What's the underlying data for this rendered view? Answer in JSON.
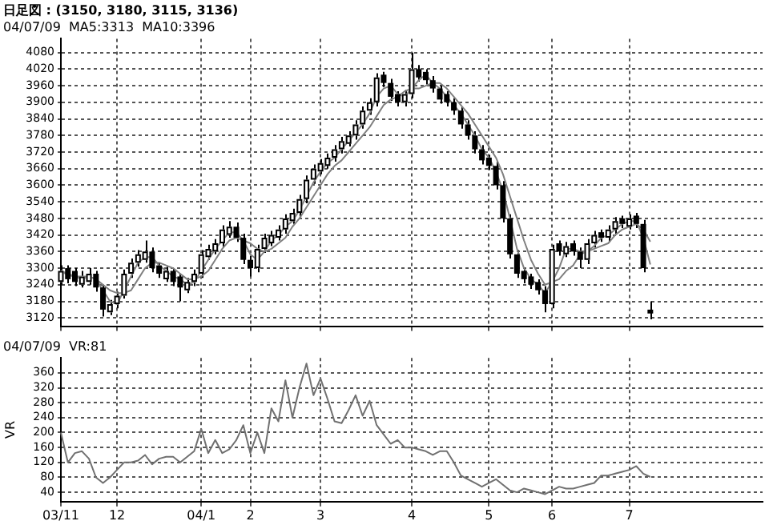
{
  "chart_data": [
    {
      "type": "candlestick",
      "title": "日足図 : (3150, 3180, 3115, 3136)",
      "subtitle": "04/07/09  MA5:3313  MA10:3396",
      "categories": [
        null,
        null,
        null,
        null,
        null,
        null,
        null,
        null,
        null,
        null,
        null,
        null,
        null,
        null,
        null,
        null,
        null,
        null,
        null,
        null,
        null,
        null,
        null,
        null,
        null,
        null,
        null,
        null,
        null,
        null,
        null,
        null,
        null,
        null,
        null,
        null,
        null,
        null,
        null,
        null,
        null,
        null,
        null,
        null,
        null,
        null,
        null,
        null,
        null,
        null,
        null,
        null,
        null,
        null,
        null,
        null,
        null,
        null,
        null,
        null,
        null,
        null,
        null,
        null,
        null,
        null,
        null,
        null,
        null,
        null,
        null,
        null,
        null,
        null,
        null,
        null,
        null,
        null,
        null,
        null,
        null,
        null,
        null,
        null,
        null,
        null,
        null,
        null,
        null,
        null,
        null,
        null,
        null,
        null,
        null,
        null,
        null,
        null,
        null,
        null,
        null
      ],
      "color": "#000000",
      "colors": [
        "#ffffff",
        "#000000",
        "#000000",
        "#ffffff",
        "#ffffff",
        "#000000",
        "#000000",
        "#ffffff",
        "#ffffff",
        "#ffffff",
        "#ffffff",
        "#ffffff",
        "#ffffff",
        "#000000",
        "#000000",
        "#ffffff",
        "#000000",
        "#000000",
        "#ffffff",
        "#ffffff",
        "#ffffff",
        "#ffffff",
        "#ffffff",
        "#ffffff",
        "#ffffff",
        "#000000",
        "#000000",
        "#000000",
        "#ffffff",
        "#ffffff",
        "#ffffff",
        "#ffffff",
        "#ffffff",
        "#ffffff",
        "#ffffff",
        "#ffffff",
        "#ffffff",
        "#ffffff",
        "#ffffff",
        "#ffffff",
        "#ffffff",
        "#ffffff",
        "#ffffff",
        "#ffffff",
        "#ffffff",
        "#ffffff",
        "#000000",
        "#000000",
        "#000000",
        "#ffffff",
        "#ffffff",
        "#000000",
        "#000000",
        "#000000",
        "#000000",
        "#000000",
        "#000000",
        "#000000",
        "#000000",
        "#000000",
        "#000000",
        "#000000",
        "#000000",
        "#000000",
        "#000000",
        "#000000",
        "#000000",
        "#000000",
        "#000000",
        "#000000",
        "#ffffff",
        "#000000",
        "#ffffff",
        "#000000",
        "#000000",
        "#ffffff",
        "#ffffff",
        "#000000",
        "#ffffff",
        "#ffffff",
        "#000000",
        "#ffffff",
        "#000000",
        "#000000",
        "#000000",
        null,
        null,
        null,
        null,
        null,
        null,
        null,
        null,
        null,
        null,
        null,
        null,
        null,
        null,
        null,
        null
      ],
      "ohlc": [
        [
          3250,
          3310,
          3240,
          3290
        ],
        [
          3300,
          3310,
          3245,
          3260
        ],
        [
          3290,
          3300,
          3235,
          3250
        ],
        [
          3240,
          3290,
          3230,
          3270
        ],
        [
          3250,
          3300,
          3240,
          3280
        ],
        [
          3280,
          3290,
          3215,
          3230
        ],
        [
          3230,
          3240,
          3125,
          3150
        ],
        [
          3140,
          3185,
          3130,
          3170
        ],
        [
          3170,
          3215,
          3155,
          3200
        ],
        [
          3200,
          3295,
          3190,
          3280
        ],
        [
          3280,
          3335,
          3265,
          3320
        ],
        [
          3320,
          3365,
          3305,
          3350
        ],
        [
          3330,
          3400,
          3320,
          3360
        ],
        [
          3360,
          3375,
          3285,
          3300
        ],
        [
          3310,
          3320,
          3265,
          3280
        ],
        [
          3260,
          3305,
          3250,
          3290
        ],
        [
          3290,
          3300,
          3235,
          3250
        ],
        [
          3270,
          3280,
          3180,
          3230
        ],
        [
          3220,
          3265,
          3210,
          3250
        ],
        [
          3250,
          3295,
          3235,
          3280
        ],
        [
          3280,
          3365,
          3265,
          3350
        ],
        [
          3340,
          3385,
          3330,
          3370
        ],
        [
          3360,
          3405,
          3350,
          3390
        ],
        [
          3390,
          3455,
          3375,
          3440
        ],
        [
          3420,
          3470,
          3410,
          3450
        ],
        [
          3450,
          3465,
          3395,
          3410
        ],
        [
          3410,
          3425,
          3315,
          3330
        ],
        [
          3330,
          3345,
          3270,
          3300
        ],
        [
          3300,
          3385,
          3285,
          3370
        ],
        [
          3370,
          3425,
          3355,
          3410
        ],
        [
          3390,
          3435,
          3380,
          3420
        ],
        [
          3410,
          3455,
          3400,
          3440
        ],
        [
          3440,
          3495,
          3425,
          3480
        ],
        [
          3470,
          3515,
          3460,
          3500
        ],
        [
          3500,
          3565,
          3485,
          3550
        ],
        [
          3550,
          3635,
          3535,
          3620
        ],
        [
          3620,
          3675,
          3605,
          3660
        ],
        [
          3650,
          3695,
          3640,
          3680
        ],
        [
          3670,
          3715,
          3660,
          3700
        ],
        [
          3700,
          3745,
          3685,
          3730
        ],
        [
          3730,
          3775,
          3715,
          3760
        ],
        [
          3750,
          3795,
          3740,
          3780
        ],
        [
          3780,
          3835,
          3765,
          3820
        ],
        [
          3820,
          3885,
          3805,
          3870
        ],
        [
          3870,
          3915,
          3855,
          3900
        ],
        [
          3900,
          4005,
          3885,
          3990
        ],
        [
          4000,
          4010,
          3955,
          3970
        ],
        [
          3970,
          3985,
          3905,
          3920
        ],
        [
          3930,
          3940,
          3885,
          3900
        ],
        [
          3900,
          3945,
          3885,
          3930
        ],
        [
          3930,
          4080,
          3915,
          4020
        ],
        [
          4020,
          4035,
          3975,
          3990
        ],
        [
          4010,
          4020,
          3965,
          3980
        ],
        [
          3980,
          3995,
          3935,
          3950
        ],
        [
          3950,
          3965,
          3895,
          3910
        ],
        [
          3930,
          3940,
          3885,
          3900
        ],
        [
          3900,
          3915,
          3855,
          3870
        ],
        [
          3870,
          3885,
          3805,
          3820
        ],
        [
          3820,
          3835,
          3765,
          3780
        ],
        [
          3780,
          3795,
          3715,
          3730
        ],
        [
          3730,
          3745,
          3675,
          3690
        ],
        [
          3700,
          3710,
          3655,
          3670
        ],
        [
          3670,
          3685,
          3585,
          3600
        ],
        [
          3600,
          3615,
          3465,
          3480
        ],
        [
          3480,
          3495,
          3335,
          3350
        ],
        [
          3350,
          3365,
          3265,
          3280
        ],
        [
          3290,
          3300,
          3245,
          3260
        ],
        [
          3270,
          3280,
          3225,
          3240
        ],
        [
          3250,
          3260,
          3205,
          3220
        ],
        [
          3220,
          3235,
          3140,
          3170
        ],
        [
          3170,
          3385,
          3155,
          3370
        ],
        [
          3390,
          3400,
          3345,
          3360
        ],
        [
          3350,
          3395,
          3340,
          3380
        ],
        [
          3390,
          3400,
          3345,
          3360
        ],
        [
          3360,
          3375,
          3300,
          3330
        ],
        [
          3330,
          3405,
          3315,
          3390
        ],
        [
          3390,
          3435,
          3375,
          3420
        ],
        [
          3430,
          3440,
          3395,
          3410
        ],
        [
          3410,
          3455,
          3395,
          3440
        ],
        [
          3440,
          3485,
          3425,
          3470
        ],
        [
          3480,
          3490,
          3445,
          3460
        ],
        [
          3450,
          3495,
          3440,
          3480
        ],
        [
          3490,
          3500,
          3445,
          3460
        ],
        [
          3460,
          3475,
          3285,
          3300
        ],
        [
          3150,
          3180,
          3115,
          3136
        ],
        null,
        null,
        null,
        null,
        null,
        null,
        null,
        null,
        null,
        null,
        null,
        null,
        null,
        null,
        null,
        null
      ],
      "series": [
        {
          "type": "line",
          "color": "#808080",
          "values": [
            3290,
            3275,
            3270,
            3260,
            3270,
            3260,
            3220,
            3180,
            3170,
            3220,
            3270,
            3320,
            3340,
            3340,
            3310,
            3290,
            3270,
            3260,
            3240,
            3250,
            3290,
            3330,
            3370,
            3400,
            3430,
            3430,
            3400,
            3350,
            3330,
            3360,
            3400,
            3420,
            3450,
            3470,
            3510,
            3560,
            3610,
            3650,
            3680,
            3700,
            3730,
            3760,
            3790,
            3820,
            3860,
            3920,
            3950,
            3960,
            3930,
            3920,
            3950,
            3980,
            4000,
            3970,
            3950,
            3920,
            3890,
            3860,
            3820,
            3780,
            3730,
            3700,
            3650,
            3580,
            3480,
            3370,
            3300,
            3260,
            3240,
            3210,
            3250,
            3300,
            3370,
            3370,
            3360,
            3360,
            3380,
            3410,
            3420,
            3440,
            3460,
            3470,
            3470,
            3410,
            3313,
            null,
            null,
            null,
            null,
            null,
            null,
            null,
            null,
            null,
            null,
            null,
            null,
            null,
            null,
            null,
            null
          ]
        },
        {
          "type": "line",
          "color": "#808080",
          "values": [
            3290,
            3280,
            3270,
            3270,
            3270,
            3260,
            3240,
            3220,
            3210,
            3210,
            3220,
            3260,
            3300,
            3320,
            3320,
            3310,
            3300,
            3280,
            3260,
            3260,
            3270,
            3290,
            3330,
            3370,
            3400,
            3410,
            3400,
            3390,
            3370,
            3360,
            3370,
            3390,
            3410,
            3450,
            3480,
            3520,
            3560,
            3600,
            3640,
            3670,
            3690,
            3720,
            3750,
            3780,
            3810,
            3850,
            3890,
            3910,
            3920,
            3940,
            3950,
            3950,
            3960,
            3970,
            3970,
            3950,
            3920,
            3890,
            3860,
            3820,
            3780,
            3740,
            3700,
            3640,
            3560,
            3480,
            3400,
            3330,
            3280,
            3240,
            3250,
            3260,
            3290,
            3310,
            3350,
            3360,
            3370,
            3380,
            3390,
            3420,
            3440,
            3450,
            3460,
            3440,
            3396,
            null,
            null,
            null,
            null,
            null,
            null,
            null,
            null,
            null,
            null,
            null,
            null,
            null,
            null,
            null,
            null
          ]
        }
      ],
      "ylim": [
        3090,
        4130
      ],
      "yticks": [
        3120,
        3180,
        3240,
        3300,
        3360,
        3420,
        3480,
        3540,
        3600,
        3660,
        3720,
        3780,
        3840,
        3900,
        3960,
        4020,
        4080
      ],
      "grid": true,
      "tick_labels": "y"
    },
    {
      "type": "line",
      "ylabel": "VR",
      "subtitle": "04/07/09  VR:81",
      "categories": [
        "03/11",
        null,
        null,
        null,
        null,
        null,
        null,
        null,
        "12",
        null,
        null,
        null,
        null,
        null,
        null,
        null,
        null,
        null,
        null,
        null,
        "04/1",
        null,
        null,
        null,
        null,
        null,
        null,
        "2",
        null,
        null,
        null,
        null,
        null,
        null,
        null,
        null,
        null,
        "3",
        null,
        null,
        null,
        null,
        null,
        null,
        null,
        null,
        null,
        null,
        null,
        null,
        "4",
        null,
        null,
        null,
        null,
        null,
        null,
        null,
        null,
        null,
        null,
        "5",
        null,
        null,
        null,
        null,
        null,
        null,
        null,
        null,
        "6",
        null,
        null,
        null,
        null,
        null,
        null,
        null,
        null,
        null,
        null,
        "7",
        null,
        null,
        null,
        null,
        null,
        null,
        null,
        null,
        null,
        null,
        null,
        null,
        null,
        null,
        null,
        null,
        null,
        null,
        null
      ],
      "color": "#707070",
      "values": [
        200,
        120,
        145,
        150,
        130,
        80,
        65,
        80,
        100,
        120,
        120,
        125,
        140,
        115,
        130,
        135,
        135,
        120,
        135,
        150,
        210,
        145,
        180,
        145,
        155,
        180,
        220,
        145,
        200,
        145,
        265,
        230,
        340,
        240,
        320,
        385,
        300,
        345,
        290,
        230,
        225,
        260,
        300,
        245,
        285,
        220,
        195,
        170,
        180,
        160,
        160,
        155,
        150,
        140,
        150,
        150,
        120,
        85,
        75,
        65,
        55,
        65,
        75,
        60,
        45,
        40,
        50,
        45,
        40,
        35,
        45,
        55,
        50,
        50,
        55,
        60,
        65,
        85,
        85,
        90,
        95,
        100,
        110,
        90,
        81,
        null,
        null,
        null,
        null,
        null,
        null,
        null,
        null,
        null,
        null,
        null,
        null,
        null,
        null,
        null,
        null
      ],
      "ylim": [
        15,
        400
      ],
      "yticks": [
        40,
        80,
        120,
        160,
        200,
        240,
        280,
        320,
        360
      ],
      "grid": true
    }
  ]
}
